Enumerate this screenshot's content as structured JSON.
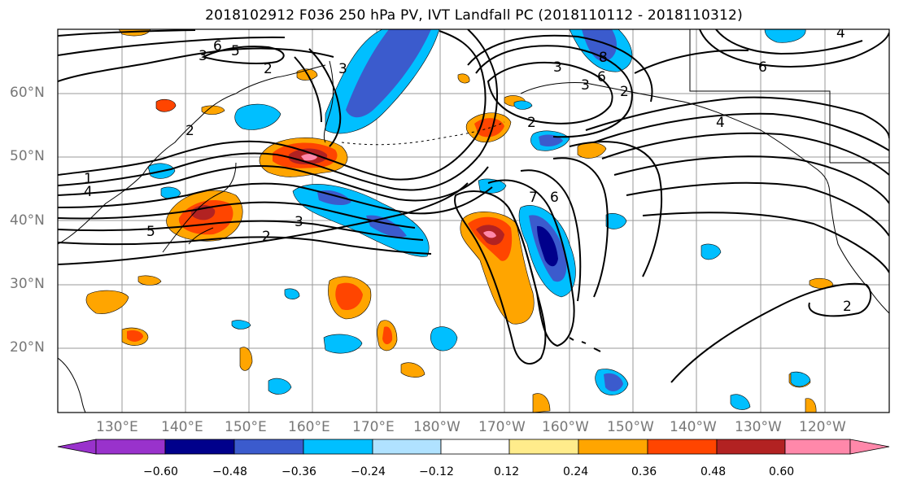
{
  "title": "2018102912 F036 250 hPa PV, IVT Landfall PC (2018110112 - 2018110312)",
  "lat_labels": [
    "60°N",
    "50°N",
    "40°N",
    "30°N",
    "20°N"
  ],
  "lon_labels": [
    "130°E",
    "140°E",
    "150°E",
    "160°E",
    "170°E",
    "180°W",
    "170°W",
    "160°W",
    "150°W",
    "140°W",
    "130°W",
    "120°W"
  ],
  "colorbar": {
    "ticks": [
      "−0.60",
      "−0.48",
      "−0.36",
      "−0.24",
      "−0.12",
      "0.12",
      "0.24",
      "0.36",
      "0.48",
      "0.60"
    ],
    "colors": [
      "#9932cc",
      "#00008b",
      "#3b5bcd",
      "#00bfff",
      "#b0e2ff",
      "#ffffff",
      "#ffec8b",
      "#ffa500",
      "#ff4500",
      "#b22222",
      "#ff88aa"
    ]
  },
  "contour_labels": [
    "6",
    "3",
    "5",
    "2",
    "2",
    "1",
    "4",
    "5",
    "3",
    "2",
    "3",
    "2",
    "3",
    "3",
    "8",
    "6",
    "4",
    "2",
    "7",
    "6",
    "4",
    "6",
    "2"
  ]
}
